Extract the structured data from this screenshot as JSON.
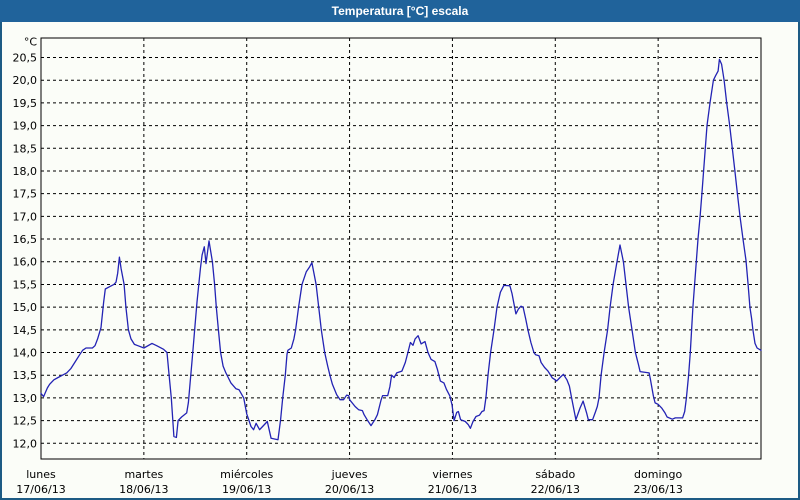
{
  "window": {
    "title": "Temperatura [°C] escala"
  },
  "colors": {
    "titlebar": "#20639b",
    "window_border": "#1d5b84",
    "background": "#fbfdf8",
    "line": "#2323b4",
    "grid": "#000000",
    "text": "#000000"
  },
  "chart_data": {
    "type": "line",
    "title": "Temperatura [°C] escala",
    "ylabel_unit": "°C",
    "ylim": [
      12.0,
      20.5
    ],
    "y_tick_step": 0.5,
    "y_tick_labels": [
      "20,5",
      "20,0",
      "19,5",
      "19,0",
      "18,5",
      "18,0",
      "17,5",
      "17,0",
      "16,5",
      "16,0",
      "15,5",
      "15,0",
      "14,5",
      "14,0",
      "13,5",
      "13,0",
      "12,5",
      "12,0"
    ],
    "x_days": [
      {
        "name": "lunes",
        "date": "17/06/13"
      },
      {
        "name": "martes",
        "date": "18/06/13"
      },
      {
        "name": "miércoles",
        "date": "19/06/13"
      },
      {
        "name": "jueves",
        "date": "20/06/13"
      },
      {
        "name": "viernes",
        "date": "21/06/13"
      },
      {
        "name": "sábado",
        "date": "22/06/13"
      },
      {
        "name": "domingo",
        "date": "23/06/13"
      }
    ],
    "x_range_hours": [
      0,
      168
    ],
    "grid": "dashed",
    "legend": "none",
    "series": [
      {
        "name": "Temperatura [°C]",
        "color": "#2323b4",
        "points": [
          [
            0,
            13.1
          ],
          [
            0.6,
            13.03
          ],
          [
            1.5,
            13.22
          ],
          [
            2,
            13.3
          ],
          [
            3,
            13.4
          ],
          [
            4,
            13.45
          ],
          [
            5,
            13.5
          ],
          [
            6,
            13.55
          ],
          [
            7,
            13.65
          ],
          [
            8,
            13.8
          ],
          [
            9,
            13.95
          ],
          [
            9.7,
            14.05
          ],
          [
            10.5,
            14.1
          ],
          [
            12,
            14.1
          ],
          [
            12.6,
            14.15
          ],
          [
            13.2,
            14.3
          ],
          [
            14,
            14.55
          ],
          [
            14.6,
            15.1
          ],
          [
            15,
            15.4
          ],
          [
            16,
            15.45
          ],
          [
            17,
            15.5
          ],
          [
            17.5,
            15.55
          ],
          [
            17.9,
            15.75
          ],
          [
            18.3,
            16.1
          ],
          [
            18.7,
            15.85
          ],
          [
            19.4,
            15.5
          ],
          [
            19.8,
            15.0
          ],
          [
            20.4,
            14.5
          ],
          [
            21,
            14.3
          ],
          [
            21.8,
            14.18
          ],
          [
            22.6,
            14.15
          ],
          [
            24,
            14.1
          ],
          [
            25.9,
            14.2
          ],
          [
            27,
            14.15
          ],
          [
            28.6,
            14.07
          ],
          [
            29.4,
            14.0
          ],
          [
            29.9,
            13.5
          ],
          [
            30.4,
            13.0
          ],
          [
            31,
            12.15
          ],
          [
            31.6,
            12.13
          ],
          [
            32,
            12.5
          ],
          [
            32.8,
            12.58
          ],
          [
            34,
            12.67
          ],
          [
            34.4,
            12.9
          ],
          [
            34.8,
            13.33
          ],
          [
            35.2,
            13.78
          ],
          [
            35.6,
            14.22
          ],
          [
            36,
            14.67
          ],
          [
            36.4,
            15.11
          ],
          [
            36.8,
            15.48
          ],
          [
            37.2,
            15.85
          ],
          [
            37.6,
            16.15
          ],
          [
            38.1,
            16.33
          ],
          [
            38.5,
            15.96
          ],
          [
            39.2,
            16.46
          ],
          [
            40,
            16.0
          ],
          [
            40.5,
            15.5
          ],
          [
            40.9,
            15.0
          ],
          [
            41.4,
            14.5
          ],
          [
            41.9,
            14.0
          ],
          [
            42.5,
            13.7
          ],
          [
            43.1,
            13.56
          ],
          [
            44.3,
            13.33
          ],
          [
            45.5,
            13.2
          ],
          [
            46.2,
            13.18
          ],
          [
            47.3,
            13.0
          ],
          [
            48,
            12.65
          ],
          [
            49,
            12.37
          ],
          [
            49.6,
            12.3
          ],
          [
            50.2,
            12.44
          ],
          [
            51,
            12.3
          ],
          [
            51.7,
            12.37
          ],
          [
            52.8,
            12.48
          ],
          [
            53.7,
            12.11
          ],
          [
            55.3,
            12.08
          ],
          [
            55.9,
            12.52
          ],
          [
            56.4,
            13.0
          ],
          [
            57,
            13.5
          ],
          [
            57.4,
            13.96
          ],
          [
            57.6,
            14.05
          ],
          [
            58.4,
            14.1
          ],
          [
            59,
            14.3
          ],
          [
            59.4,
            14.5
          ],
          [
            60.1,
            15.0
          ],
          [
            60.9,
            15.5
          ],
          [
            61.9,
            15.78
          ],
          [
            62.7,
            15.89
          ],
          [
            63.2,
            15.98
          ],
          [
            64.2,
            15.5
          ],
          [
            64.8,
            15.0
          ],
          [
            65.4,
            14.5
          ],
          [
            66.2,
            14.0
          ],
          [
            66.9,
            13.7
          ],
          [
            67.4,
            13.5
          ],
          [
            68,
            13.3
          ],
          [
            69,
            13.07
          ],
          [
            69.8,
            12.96
          ],
          [
            70.6,
            12.96
          ],
          [
            71.3,
            13.06
          ],
          [
            71.8,
            13.05
          ],
          [
            72,
            12.96
          ],
          [
            73.3,
            12.81
          ],
          [
            74.1,
            12.74
          ],
          [
            75,
            12.72
          ],
          [
            75.4,
            12.63
          ],
          [
            76.1,
            12.52
          ],
          [
            77,
            12.39
          ],
          [
            77.9,
            12.52
          ],
          [
            78.5,
            12.63
          ],
          [
            79.3,
            12.94
          ],
          [
            79.7,
            13.05
          ],
          [
            80.9,
            13.05
          ],
          [
            81.4,
            13.25
          ],
          [
            81.8,
            13.5
          ],
          [
            82.4,
            13.45
          ],
          [
            83,
            13.55
          ],
          [
            84.2,
            13.59
          ],
          [
            85,
            13.78
          ],
          [
            85.6,
            14.0
          ],
          [
            86.2,
            14.22
          ],
          [
            86.8,
            14.16
          ],
          [
            87.3,
            14.3
          ],
          [
            88,
            14.37
          ],
          [
            88.7,
            14.19
          ],
          [
            89.6,
            14.24
          ],
          [
            90.3,
            14.0
          ],
          [
            91,
            13.85
          ],
          [
            91.9,
            13.8
          ],
          [
            92.5,
            13.63
          ],
          [
            93.2,
            13.37
          ],
          [
            94,
            13.33
          ],
          [
            94.6,
            13.19
          ],
          [
            95.4,
            13.04
          ],
          [
            95.9,
            12.85
          ],
          [
            96.4,
            12.5
          ],
          [
            97,
            12.68
          ],
          [
            97.4,
            12.7
          ],
          [
            97.9,
            12.52
          ],
          [
            99,
            12.48
          ],
          [
            99.7,
            12.41
          ],
          [
            100.2,
            12.33
          ],
          [
            100.8,
            12.48
          ],
          [
            101.5,
            12.59
          ],
          [
            102.3,
            12.62
          ],
          [
            102.9,
            12.7
          ],
          [
            103.4,
            12.72
          ],
          [
            103.8,
            13.0
          ],
          [
            104.3,
            13.5
          ],
          [
            104.9,
            14.0
          ],
          [
            105.7,
            14.5
          ],
          [
            106.4,
            15.0
          ],
          [
            107.2,
            15.33
          ],
          [
            108,
            15.48
          ],
          [
            109.4,
            15.47
          ],
          [
            109.9,
            15.3
          ],
          [
            110.5,
            15.0
          ],
          [
            110.8,
            14.85
          ],
          [
            111.4,
            14.96
          ],
          [
            112,
            15.02
          ],
          [
            112.5,
            15.0
          ],
          [
            113.1,
            14.74
          ],
          [
            113.6,
            14.5
          ],
          [
            114.3,
            14.22
          ],
          [
            115,
            14.0
          ],
          [
            115.4,
            13.95
          ],
          [
            116.2,
            13.93
          ],
          [
            116.7,
            13.78
          ],
          [
            117.5,
            13.67
          ],
          [
            118.3,
            13.59
          ],
          [
            119.3,
            13.44
          ],
          [
            120,
            13.4
          ],
          [
            120.3,
            13.37
          ],
          [
            121.1,
            13.45
          ],
          [
            121.9,
            13.52
          ],
          [
            122.7,
            13.4
          ],
          [
            123.3,
            13.26
          ],
          [
            123.8,
            13.0
          ],
          [
            124.8,
            12.52
          ],
          [
            125.8,
            12.78
          ],
          [
            126.5,
            12.93
          ],
          [
            127.3,
            12.67
          ],
          [
            127.7,
            12.52
          ],
          [
            128.7,
            12.52
          ],
          [
            129.4,
            12.7
          ],
          [
            129.8,
            12.81
          ],
          [
            130.2,
            13.0
          ],
          [
            130.7,
            13.5
          ],
          [
            131.4,
            14.0
          ],
          [
            132.2,
            14.5
          ],
          [
            132.8,
            15.0
          ],
          [
            133.5,
            15.5
          ],
          [
            134.4,
            16.0
          ],
          [
            135.1,
            16.37
          ],
          [
            135.9,
            16.0
          ],
          [
            136.5,
            15.5
          ],
          [
            137.1,
            15.0
          ],
          [
            137.9,
            14.5
          ],
          [
            138.7,
            14.0
          ],
          [
            139.4,
            13.74
          ],
          [
            139.8,
            13.58
          ],
          [
            141.9,
            13.55
          ],
          [
            142.2,
            13.41
          ],
          [
            142.9,
            13.04
          ],
          [
            143.3,
            12.89
          ],
          [
            144,
            12.86
          ],
          [
            144.8,
            12.78
          ],
          [
            145.6,
            12.67
          ],
          [
            146.1,
            12.58
          ],
          [
            147.3,
            12.53
          ],
          [
            148,
            12.56
          ],
          [
            149.7,
            12.56
          ],
          [
            150.2,
            12.7
          ],
          [
            150.6,
            13.0
          ],
          [
            151.1,
            13.5
          ],
          [
            151.5,
            14.0
          ],
          [
            151.8,
            14.5
          ],
          [
            152.1,
            15.0
          ],
          [
            152.5,
            15.5
          ],
          [
            152.9,
            16.0
          ],
          [
            153.3,
            16.5
          ],
          [
            153.8,
            17.0
          ],
          [
            154.2,
            17.5
          ],
          [
            154.6,
            18.0
          ],
          [
            155,
            18.5
          ],
          [
            155.4,
            19.0
          ],
          [
            156.1,
            19.5
          ],
          [
            156.9,
            20.0
          ],
          [
            157.4,
            20.1
          ],
          [
            158,
            20.2
          ],
          [
            158.3,
            20.46
          ],
          [
            158.8,
            20.35
          ],
          [
            159.4,
            20.0
          ],
          [
            160,
            19.5
          ],
          [
            160.7,
            19.0
          ],
          [
            161.3,
            18.5
          ],
          [
            161.9,
            18.0
          ],
          [
            162.5,
            17.5
          ],
          [
            163.1,
            17.0
          ],
          [
            163.8,
            16.5
          ],
          [
            164.5,
            16.03
          ],
          [
            165,
            15.5
          ],
          [
            165.4,
            15.0
          ],
          [
            165.8,
            14.75
          ],
          [
            166.1,
            14.5
          ],
          [
            166.6,
            14.2
          ],
          [
            167.1,
            14.1
          ],
          [
            168,
            14.05
          ]
        ]
      }
    ]
  }
}
